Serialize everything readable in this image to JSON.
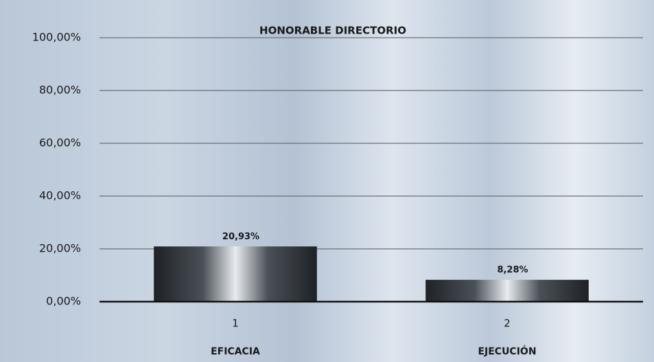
{
  "chart_data": {
    "type": "bar",
    "title": "HONORABLE DIRECTORIO",
    "categories": [
      "1",
      "2"
    ],
    "category_labels": [
      "EFICACIA",
      "EJECUCIÓN"
    ],
    "values": [
      20.93,
      8.28
    ],
    "value_labels": [
      "20,93%",
      "8,28%"
    ],
    "ylim": [
      0,
      100
    ],
    "yticks": [
      {
        "value": 0,
        "label": "0,00%"
      },
      {
        "value": 20,
        "label": "20,00%"
      },
      {
        "value": 40,
        "label": "40,00%"
      },
      {
        "value": 60,
        "label": "60,00%"
      },
      {
        "value": 80,
        "label": "80,00%"
      },
      {
        "value": 100,
        "label": "100,00%"
      }
    ],
    "grid": true
  }
}
